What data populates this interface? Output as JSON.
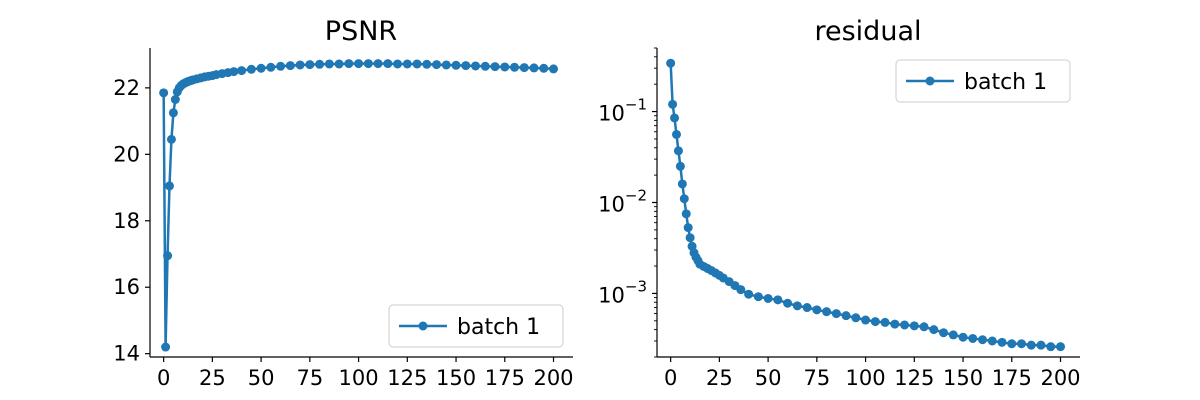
{
  "chart_data": [
    {
      "type": "line",
      "title": "PSNR",
      "xlabel": "",
      "ylabel": "",
      "xlim": [
        -7,
        210
      ],
      "ylim": [
        13.9,
        23.2
      ],
      "yscale": "linear",
      "xticks": [
        0,
        25,
        50,
        75,
        100,
        125,
        150,
        175,
        200
      ],
      "xtick_labels": [
        "0",
        "25",
        "50",
        "75",
        "100",
        "125",
        "150",
        "175",
        "200"
      ],
      "yticks": [
        14,
        16,
        18,
        20,
        22
      ],
      "ytick_labels": [
        "14",
        "16",
        "18",
        "20",
        "22"
      ],
      "grid": false,
      "legend": {
        "position": "lower-right",
        "entries": [
          "batch 1"
        ]
      },
      "color": "#1f77b4",
      "series": [
        {
          "name": "batch 1",
          "x": [
            0,
            1,
            2,
            3,
            4,
            5,
            6,
            7,
            8,
            9,
            10,
            11,
            12,
            13,
            14,
            15,
            17,
            19,
            21,
            23,
            25,
            27,
            30,
            33,
            36,
            40,
            45,
            50,
            55,
            60,
            65,
            70,
            75,
            80,
            85,
            90,
            95,
            100,
            105,
            110,
            115,
            120,
            125,
            130,
            135,
            140,
            145,
            150,
            155,
            160,
            165,
            170,
            175,
            180,
            185,
            190,
            195,
            200
          ],
          "values": [
            21.85,
            14.2,
            16.95,
            19.05,
            20.45,
            21.25,
            21.65,
            21.88,
            22.0,
            22.07,
            22.12,
            22.15,
            22.18,
            22.2,
            22.22,
            22.24,
            22.27,
            22.3,
            22.33,
            22.35,
            22.37,
            22.4,
            22.43,
            22.46,
            22.49,
            22.52,
            22.56,
            22.59,
            22.62,
            22.65,
            22.67,
            22.69,
            22.7,
            22.71,
            22.72,
            22.72,
            22.73,
            22.73,
            22.73,
            22.73,
            22.73,
            22.72,
            22.72,
            22.72,
            22.71,
            22.7,
            22.69,
            22.68,
            22.67,
            22.66,
            22.65,
            22.64,
            22.63,
            22.62,
            22.61,
            22.6,
            22.59,
            22.57
          ]
        }
      ]
    },
    {
      "type": "line",
      "title": "residual",
      "xlabel": "",
      "ylabel": "",
      "xlim": [
        -7,
        210
      ],
      "ylim": [
        0.0002,
        0.5
      ],
      "yscale": "log",
      "xticks": [
        0,
        25,
        50,
        75,
        100,
        125,
        150,
        175,
        200
      ],
      "xtick_labels": [
        "0",
        "25",
        "50",
        "75",
        "100",
        "125",
        "150",
        "175",
        "200"
      ],
      "yticks": [
        0.001,
        0.01,
        0.1
      ],
      "ytick_labels": [
        {
          "base": "10",
          "exp": "−3"
        },
        {
          "base": "10",
          "exp": "−2"
        },
        {
          "base": "10",
          "exp": "−1"
        }
      ],
      "grid": false,
      "legend": {
        "position": "top-right",
        "entries": [
          "batch 1"
        ]
      },
      "color": "#1f77b4",
      "series": [
        {
          "name": "batch 1",
          "x": [
            0,
            1,
            2,
            3,
            4,
            5,
            6,
            7,
            8,
            9,
            10,
            11,
            12,
            13,
            14,
            15,
            17,
            19,
            21,
            23,
            25,
            27,
            30,
            33,
            36,
            40,
            45,
            50,
            55,
            60,
            65,
            70,
            75,
            80,
            85,
            90,
            95,
            100,
            105,
            110,
            115,
            120,
            125,
            130,
            135,
            140,
            145,
            150,
            155,
            160,
            165,
            170,
            175,
            180,
            185,
            190,
            195,
            200
          ],
          "values": [
            0.34,
            0.12,
            0.085,
            0.056,
            0.037,
            0.025,
            0.016,
            0.011,
            0.0075,
            0.0053,
            0.0041,
            0.0033,
            0.0028,
            0.0025,
            0.0023,
            0.0021,
            0.00198,
            0.00188,
            0.00178,
            0.00168,
            0.00158,
            0.00148,
            0.00135,
            0.00122,
            0.0011,
            0.00098,
            0.00092,
            0.00088,
            0.00085,
            0.00078,
            0.00073,
            0.0007,
            0.00066,
            0.00063,
            0.0006,
            0.00057,
            0.00054,
            0.00051,
            0.00049,
            0.00048,
            0.00046,
            0.00045,
            0.00044,
            0.00043,
            0.0004,
            0.00037,
            0.00035,
            0.00033,
            0.00032,
            0.00031,
            0.0003,
            0.00029,
            0.00028,
            0.00028,
            0.00027,
            0.00027,
            0.00026,
            0.00026
          ]
        }
      ]
    }
  ]
}
